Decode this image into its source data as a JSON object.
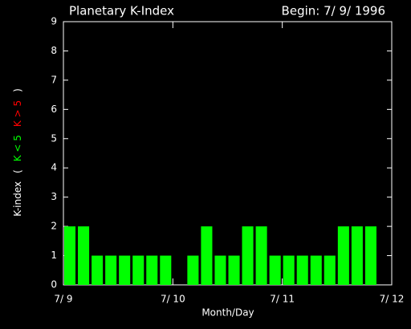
{
  "chart_data": {
    "type": "bar",
    "title": "Planetary K-Index",
    "subtitle": "Begin: 7/ 9/ 1996",
    "x_label": "Month/Day",
    "y_label": [
      {
        "text": "K-index",
        "color": "#ffffff"
      },
      {
        "text": "(",
        "color": "#ffffff"
      },
      {
        "text": "K < 5",
        "color": "#00ff00"
      },
      {
        "text": "K > 5",
        "color": "#ff0000"
      },
      {
        "text": ")",
        "color": "#ffffff"
      }
    ],
    "categories": [
      null,
      null,
      null,
      null,
      null,
      null,
      null,
      null,
      null,
      null,
      null,
      null,
      null,
      null,
      null,
      null,
      null,
      null,
      null,
      null,
      null,
      null,
      null,
      null
    ],
    "values": [
      2,
      2,
      1,
      1,
      1,
      1,
      1,
      1,
      0,
      1,
      2,
      1,
      1,
      2,
      2,
      1,
      1,
      1,
      1,
      1,
      2,
      2,
      2,
      0
    ],
    "color": "#00ff00",
    "xlim": [
      0,
      24
    ],
    "xticks": [
      {
        "value": 0,
        "label": "7/ 9"
      },
      {
        "value": 8,
        "label": "7/ 10"
      },
      {
        "value": 16,
        "label": "7/ 11"
      },
      {
        "value": 24,
        "label": "7/ 12"
      }
    ],
    "ylim": [
      0,
      9
    ],
    "yticks": [
      0,
      1,
      2,
      3,
      4,
      5,
      6,
      7,
      8,
      9
    ],
    "grid": false
  }
}
